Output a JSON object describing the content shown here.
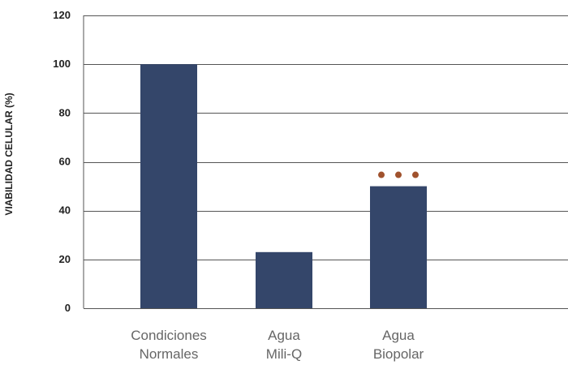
{
  "chart_data": {
    "type": "bar",
    "title": "",
    "xlabel": "",
    "ylabel": "VIABILIDAD CELULAR (%)",
    "ylim": [
      0,
      120
    ],
    "yticks": [
      0,
      20,
      40,
      60,
      80,
      100,
      120
    ],
    "categories": [
      [
        "Condiciones",
        "Normales"
      ],
      [
        "Agua",
        "Mili-Q"
      ],
      [
        "Agua",
        "Biopolar"
      ]
    ],
    "values": [
      100,
      23,
      50
    ],
    "bar_color": "#34466a",
    "grid": true,
    "annotations": [
      {
        "category_index": 2,
        "marker": "•••",
        "count": 3,
        "color": "#a0522d",
        "y": 55
      }
    ]
  }
}
